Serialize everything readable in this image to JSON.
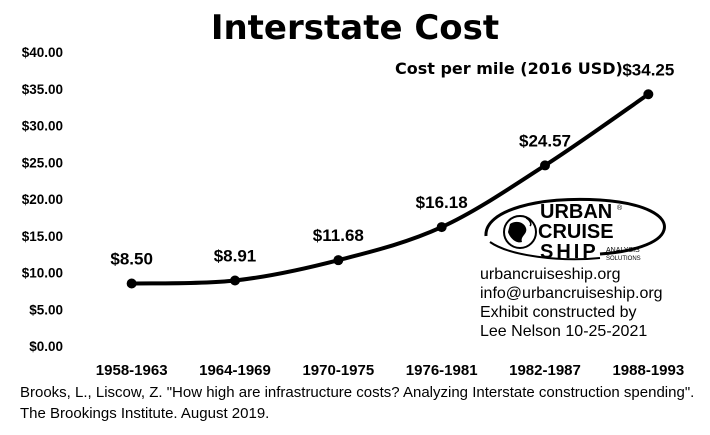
{
  "chart_data": {
    "type": "line",
    "title": "Interstate Cost",
    "unit_label": "Cost per mile (2016 USD)",
    "categories": [
      "1958-1963",
      "1964-1969",
      "1970-1975",
      "1976-1981",
      "1982-1987",
      "1988-1993"
    ],
    "series": [
      {
        "values": [
          8.5,
          8.91,
          11.68,
          16.18,
          24.57,
          34.25
        ],
        "labels": [
          "$8.50",
          "$8.91",
          "$11.68",
          "$16.18",
          "$24.57",
          "$34.25"
        ]
      }
    ],
    "yticks": [
      "$0.00",
      "$5.00",
      "$10.00",
      "$15.00",
      "$20.00",
      "$25.00",
      "$30.00",
      "$35.00",
      "$40.00"
    ],
    "ylim": [
      0,
      40
    ],
    "grid": false,
    "legend": "none",
    "line_color": "#000000"
  },
  "logo": {
    "line1": "URBAN",
    "line2": "CRUISE",
    "line3": "SHIP",
    "sub1": "ANALYSIS",
    "sub2": "SOLUTIONS",
    "mark": "®"
  },
  "contact": {
    "website": "urbancruiseship.org",
    "email": "info@urbancruiseship.org",
    "credit1": "Exhibit constructed by",
    "credit2": "Lee Nelson 10-25-2021"
  },
  "source": "Brooks, L., Liscow, Z. \"How high are infrastructure costs? Analyzing Interstate construction spending\". The Brookings Institute. August 2019."
}
